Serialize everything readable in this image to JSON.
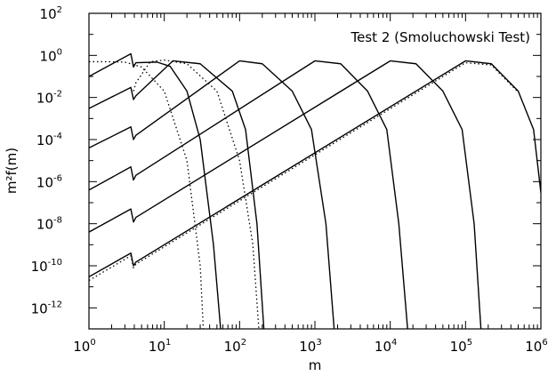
{
  "chart_data": {
    "type": "line",
    "title": "",
    "annotation": "Test 2 (Smoluchowski Test)",
    "xlabel": "m",
    "ylabel": "m²f(m)",
    "xscale": "log",
    "yscale": "log",
    "xlim": [
      1,
      1000000
    ],
    "ylim": [
      1e-13,
      100
    ],
    "grid": false,
    "legend": "none",
    "x_ticks": [
      {
        "base": "10",
        "exp": "0",
        "value": 1
      },
      {
        "base": "10",
        "exp": "1",
        "value": 10
      },
      {
        "base": "10",
        "exp": "2",
        "value": 100
      },
      {
        "base": "10",
        "exp": "3",
        "value": 1000
      },
      {
        "base": "10",
        "exp": "4",
        "value": 10000
      },
      {
        "base": "10",
        "exp": "5",
        "value": 100000
      },
      {
        "base": "10",
        "exp": "6",
        "value": 1000000
      }
    ],
    "y_ticks": [
      {
        "base": "10",
        "exp": "2",
        "value": 100
      },
      {
        "base": "10",
        "exp": "0",
        "value": 1
      },
      {
        "base": "10",
        "exp": "-2",
        "value": 0.01
      },
      {
        "base": "10",
        "exp": "-4",
        "value": 0.0001
      },
      {
        "base": "10",
        "exp": "-6",
        "value": 1e-06
      },
      {
        "base": "10",
        "exp": "-8",
        "value": 1e-08
      },
      {
        "base": "10",
        "exp": "-10",
        "value": 1e-10
      },
      {
        "base": "10",
        "exp": "-12",
        "value": 1e-12
      }
    ],
    "series": [
      {
        "style": "dotted",
        "points": [
          [
            1,
            0.5
          ],
          [
            2,
            0.5
          ],
          [
            3,
            0.48
          ],
          [
            5,
            0.28
          ],
          [
            10,
            0.02
          ],
          [
            20,
            1e-05
          ],
          [
            30,
            1e-10
          ],
          [
            33,
            1e-13
          ]
        ]
      },
      {
        "style": "solid",
        "points": [
          [
            1,
            0.1
          ],
          [
            3.6,
            1.2
          ],
          [
            3.9,
            0.28
          ],
          [
            4.2,
            0.45
          ],
          [
            8,
            0.48
          ],
          [
            12,
            0.3
          ],
          [
            20,
            0.02
          ],
          [
            30,
            0.0001
          ],
          [
            45,
            1e-09
          ],
          [
            56,
            1e-13
          ]
        ]
      },
      {
        "style": "dotted",
        "points": [
          [
            3.9,
            0.02
          ],
          [
            4.2,
            0.05
          ],
          [
            6.5,
            0.5
          ],
          [
            10,
            0.6
          ],
          [
            20,
            0.4
          ],
          [
            50,
            0.02
          ],
          [
            100,
            1e-05
          ],
          [
            150,
            1e-09
          ],
          [
            180,
            1e-13
          ]
        ]
      },
      {
        "style": "solid",
        "points": [
          [
            1,
            0.003
          ],
          [
            3.6,
            0.03
          ],
          [
            3.9,
            0.008
          ],
          [
            4.2,
            0.012
          ],
          [
            13,
            0.55
          ],
          [
            30,
            0.4
          ],
          [
            80,
            0.02
          ],
          [
            120,
            0.0003
          ],
          [
            170,
            1e-08
          ],
          [
            210,
            1e-13
          ]
        ]
      },
      {
        "style": "solid",
        "points": [
          [
            1,
            4e-05
          ],
          [
            3.6,
            0.0004
          ],
          [
            3.9,
            0.0001
          ],
          [
            4.2,
            0.00016
          ],
          [
            100,
            0.55
          ],
          [
            200,
            0.4
          ],
          [
            500,
            0.02
          ],
          [
            900,
            0.0003
          ],
          [
            1400,
            1e-08
          ],
          [
            1800,
            1e-13
          ]
        ]
      },
      {
        "style": "solid",
        "points": [
          [
            1,
            4e-07
          ],
          [
            3.6,
            5e-06
          ],
          [
            3.9,
            1.2e-06
          ],
          [
            4.2,
            2e-06
          ],
          [
            1000,
            0.55
          ],
          [
            2200,
            0.4
          ],
          [
            5000,
            0.02
          ],
          [
            9000,
            0.0003
          ],
          [
            13000,
            1e-08
          ],
          [
            17000,
            1e-13
          ]
        ]
      },
      {
        "style": "solid",
        "points": [
          [
            1,
            4e-09
          ],
          [
            3.6,
            5e-08
          ],
          [
            3.9,
            1.2e-08
          ],
          [
            4.2,
            2e-08
          ],
          [
            10000,
            0.55
          ],
          [
            22000,
            0.4
          ],
          [
            50000,
            0.02
          ],
          [
            90000,
            0.0003
          ],
          [
            130000,
            1e-08
          ],
          [
            160000,
            1e-13
          ]
        ]
      },
      {
        "style": "solid",
        "points": [
          [
            1,
            3e-11
          ],
          [
            3.6,
            4e-10
          ],
          [
            3.9,
            1e-10
          ],
          [
            4.2,
            1.5e-10
          ],
          [
            100000,
            0.55
          ],
          [
            220000,
            0.4
          ],
          [
            500000,
            0.02
          ],
          [
            800000,
            0.0003
          ],
          [
            1000000,
            3e-07
          ]
        ]
      },
      {
        "style": "dotted",
        "points": [
          [
            1,
            2e-11
          ],
          [
            3.6,
            3e-10
          ],
          [
            3.9,
            8e-11
          ],
          [
            4.2,
            1.2e-10
          ],
          [
            100000,
            0.45
          ],
          [
            220000,
            0.35
          ],
          [
            500000,
            0.018
          ]
        ]
      }
    ]
  }
}
